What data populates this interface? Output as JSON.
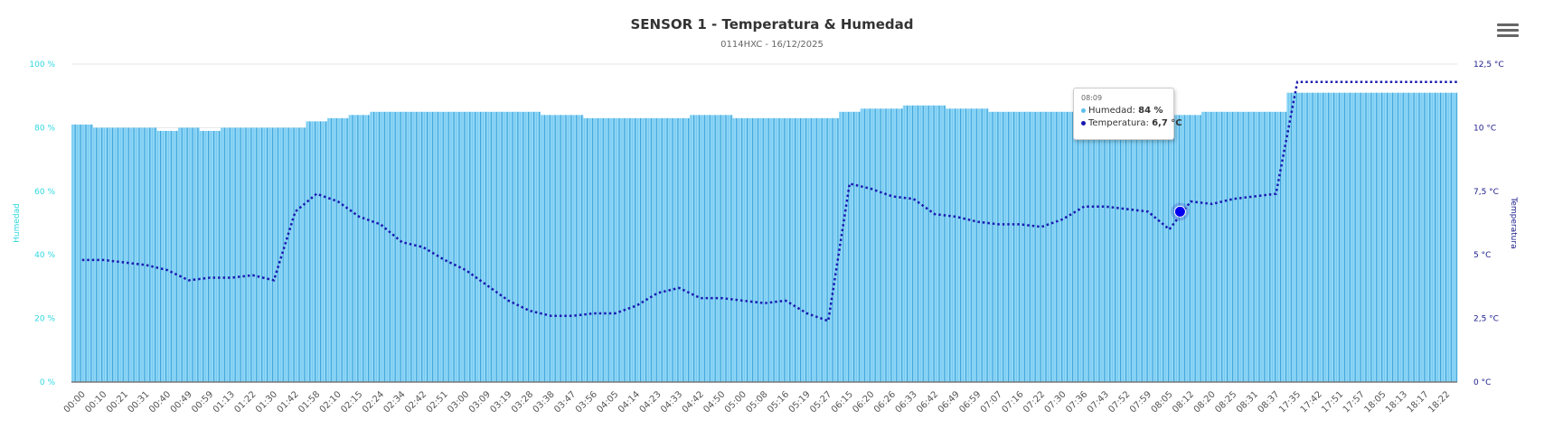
{
  "menu_icon": "hamburger-menu-icon",
  "chart_data": {
    "type": "bar",
    "title": "SENSOR 1 - Temperatura & Humedad",
    "subtitle": "0114HXC - 16/12/2025",
    "grid": true,
    "categories": [
      "00:00",
      "00:10",
      "00:21",
      "00:31",
      "00:40",
      "00:49",
      "00:59",
      "01:13",
      "01:22",
      "01:30",
      "01:42",
      "01:58",
      "02:10",
      "02:15",
      "02:24",
      "02:34",
      "02:42",
      "02:51",
      "03:00",
      "03:09",
      "03:19",
      "03:28",
      "03:38",
      "03:47",
      "03:56",
      "04:05",
      "04:14",
      "04:23",
      "04:33",
      "04:42",
      "04:50",
      "05:00",
      "05:08",
      "05:16",
      "05:19",
      "05:27",
      "06:15",
      "06:20",
      "06:26",
      "06:33",
      "06:42",
      "06:49",
      "06:59",
      "07:07",
      "07:16",
      "07:22",
      "07:30",
      "07:36",
      "07:43",
      "07:52",
      "07:59",
      "08:05",
      "08:12",
      "08:20",
      "08:25",
      "08:31",
      "08:37",
      "17:35",
      "17:42",
      "17:51",
      "17:57",
      "18:05",
      "18:13",
      "18:17",
      "18:22"
    ],
    "y_left": {
      "label": "Humedad",
      "ylim": [
        0,
        100
      ],
      "ticks": [
        "0 %",
        "20 %",
        "40 %",
        "60 %",
        "80 %",
        "100 %"
      ],
      "tick_values": [
        0,
        20,
        40,
        60,
        80,
        100
      ],
      "color": "#2fd8e0"
    },
    "y_right": {
      "label": "Temperatura",
      "ylim": [
        0,
        12.5
      ],
      "ticks": [
        "0 °C",
        "2,5 °C",
        "5 °C",
        "7,5 °C",
        "10 °C",
        "12,5 °C"
      ],
      "tick_values": [
        0,
        2.5,
        5,
        7.5,
        10,
        12.5
      ],
      "color": "#1a1a8c"
    },
    "series": [
      {
        "name": "Humedad",
        "type": "bar",
        "axis": "left",
        "unit": "%",
        "color": "#8ed6f6",
        "values": [
          81,
          80,
          80,
          80,
          79,
          80,
          79,
          80,
          80,
          80,
          80,
          82,
          83,
          84,
          85,
          85,
          85,
          85,
          85,
          85,
          85,
          85,
          84,
          84,
          83,
          83,
          83,
          83,
          83,
          84,
          84,
          83,
          83,
          83,
          83,
          83,
          85,
          86,
          86,
          87,
          87,
          86,
          86,
          85,
          85,
          85,
          85,
          85,
          85,
          85,
          85,
          84,
          84,
          85,
          85,
          85,
          85,
          91,
          91,
          91,
          91,
          91,
          91,
          91,
          91
        ]
      },
      {
        "name": "Temperatura",
        "type": "line",
        "axis": "right",
        "unit": "°C",
        "color": "#1a1ab0",
        "style": "dotted",
        "values": [
          4.8,
          4.8,
          4.7,
          4.6,
          4.4,
          4.0,
          4.1,
          4.1,
          4.2,
          4.0,
          6.7,
          7.4,
          7.1,
          6.5,
          6.2,
          5.5,
          5.3,
          4.8,
          4.4,
          3.8,
          3.2,
          2.8,
          2.6,
          2.6,
          2.7,
          2.7,
          3.0,
          3.5,
          3.7,
          3.3,
          3.3,
          3.2,
          3.1,
          3.2,
          2.7,
          2.4,
          7.8,
          7.6,
          7.3,
          7.2,
          6.6,
          6.5,
          6.3,
          6.2,
          6.2,
          6.1,
          6.4,
          6.9,
          6.9,
          6.8,
          6.7,
          6.0,
          7.1,
          7.0,
          7.2,
          7.3,
          7.4,
          11.8,
          11.8,
          11.8,
          11.8,
          11.8,
          11.8,
          11.8,
          11.8
        ]
      }
    ],
    "tooltip": {
      "time": "08:09",
      "humidity_label": "Humedad: ",
      "humidity_value": "84 %",
      "temperature_label": "Temperatura: ",
      "temperature_value": "6,7 °C",
      "temperature_numeric": 6.7
    }
  }
}
